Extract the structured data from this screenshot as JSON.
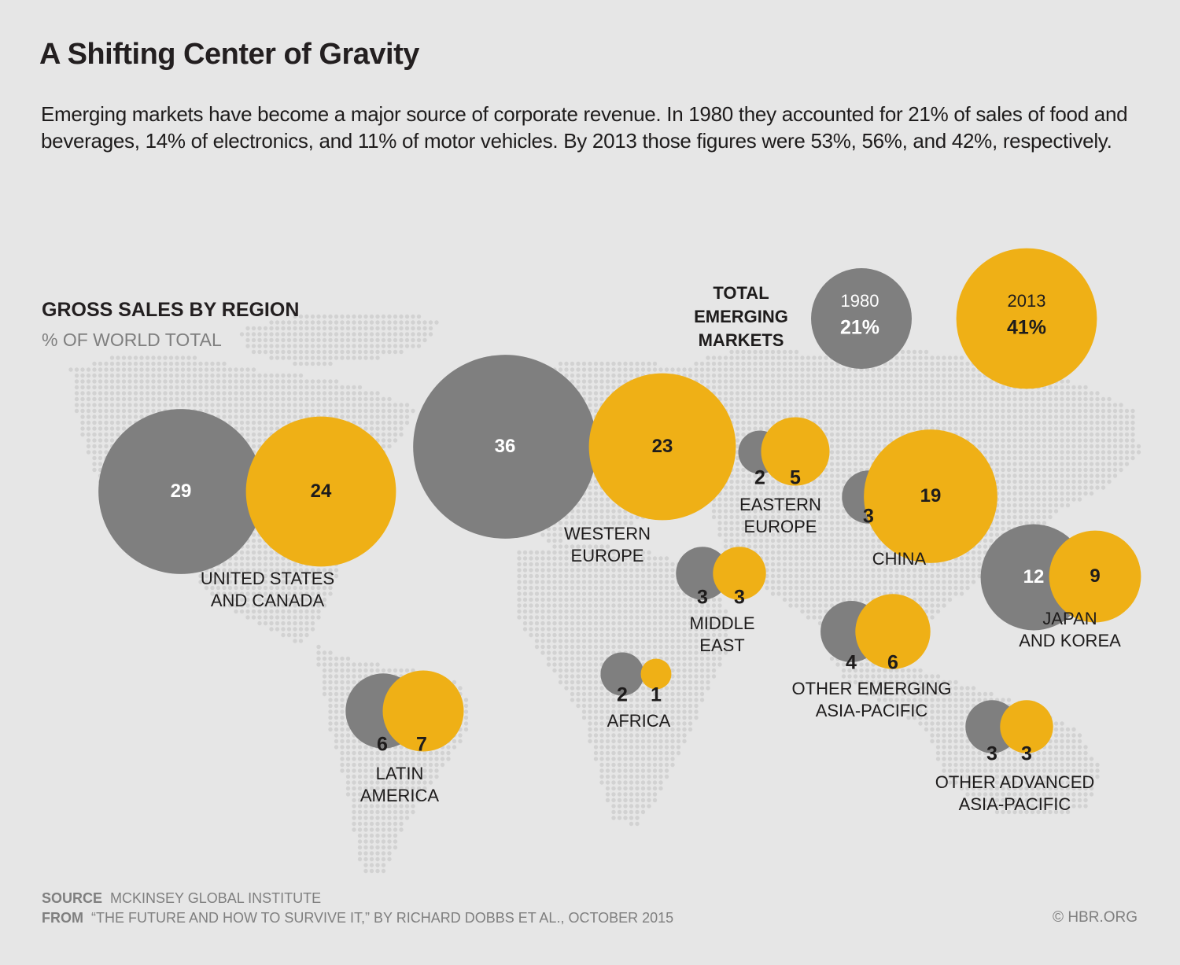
{
  "header": {
    "title": "A Shifting Center of Gravity",
    "subtitle": "Emerging markets have become a major source of corporate revenue. In 1980 they accounted for 21% of sales of food and beverages, 14% of electronics, and 11% of motor vehicles. By 2013 those figures were 53%, 56%, and 42%, respectively."
  },
  "colors": {
    "year_1980": "#7f7f7f",
    "year_2013": "#efb016",
    "map_dot": "#d2d2d2",
    "background": "#e6e6e6"
  },
  "footer": {
    "source_label": "SOURCE",
    "source_text": "MCKINSEY GLOBAL INSTITUTE",
    "from_label": "FROM",
    "from_text": "“THE FUTURE AND HOW TO SURVIVE IT,” BY RICHARD DOBBS ET AL., OCTOBER 2015",
    "copyright": "© HBR.ORG"
  },
  "chart_data": {
    "type": "bubble-map",
    "title": "GROSS SALES BY REGION",
    "subtitle": "% OF WORLD TOTAL",
    "series_names": [
      "1980",
      "2013"
    ],
    "total": {
      "label_lines": [
        "TOTAL",
        "EMERGING",
        "MARKETS"
      ],
      "year_1980": "1980",
      "value_1980": 21,
      "display_1980": "21%",
      "year_2013": "2013",
      "value_2013": 41,
      "display_2013": "41%"
    },
    "regions": [
      {
        "name_lines": [
          "UNITED STATES",
          "AND CANADA"
        ],
        "v1980": 29,
        "v2013": 24
      },
      {
        "name_lines": [
          "WESTERN",
          "EUROPE"
        ],
        "v1980": 36,
        "v2013": 23
      },
      {
        "name_lines": [
          "EASTERN",
          "EUROPE"
        ],
        "v1980": 2,
        "v2013": 5
      },
      {
        "name_lines": [
          "CHINA"
        ],
        "v1980": 3,
        "v2013": 19
      },
      {
        "name_lines": [
          "JAPAN",
          "AND KOREA"
        ],
        "v1980": 12,
        "v2013": 9
      },
      {
        "name_lines": [
          "MIDDLE",
          "EAST"
        ],
        "v1980": 3,
        "v2013": 3
      },
      {
        "name_lines": [
          "OTHER EMERGING",
          "ASIA-PACIFIC"
        ],
        "v1980": 4,
        "v2013": 6
      },
      {
        "name_lines": [
          "AFRICA"
        ],
        "v1980": 2,
        "v2013": 1
      },
      {
        "name_lines": [
          "LATIN",
          "AMERICA"
        ],
        "v1980": 6,
        "v2013": 7
      },
      {
        "name_lines": [
          "OTHER ADVANCED",
          "ASIA-PACIFIC"
        ],
        "v1980": 3,
        "v2013": 3
      }
    ]
  }
}
